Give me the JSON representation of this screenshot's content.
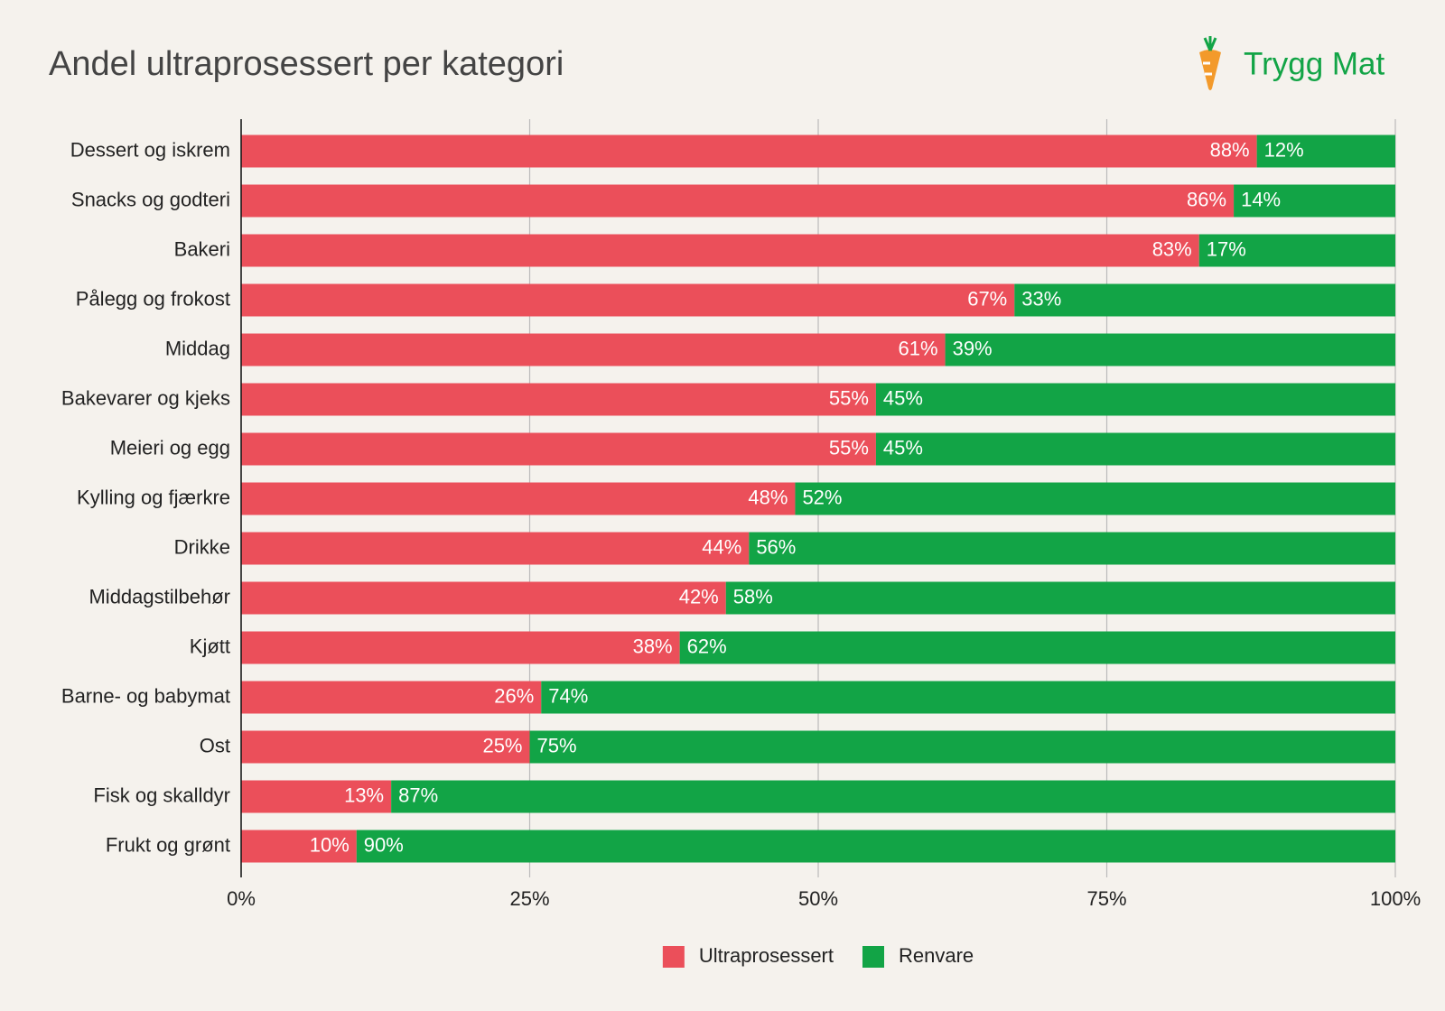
{
  "chart_data": {
    "type": "stacked-bar-horizontal",
    "title": "Andel ultraprosessert per kategori",
    "categories": [
      "Dessert og iskrem",
      "Snacks og godteri",
      "Bakeri",
      "Pålegg og frokost",
      "Middag",
      "Bakevarer og kjeks",
      "Meieri og egg",
      "Kylling og fjærkre",
      "Drikke",
      "Middagstilbehør",
      "Kjøtt",
      "Barne- og babymat",
      "Ost",
      "Fisk og skalldyr",
      "Frukt og grønt"
    ],
    "series": [
      {
        "name": "Ultraprosessert",
        "color": "#eb4f5a",
        "values": [
          88,
          86,
          83,
          67,
          61,
          55,
          55,
          48,
          44,
          42,
          38,
          26,
          25,
          13,
          10
        ],
        "value_labels": [
          "88%",
          "86%",
          "83%",
          "67%",
          "61%",
          "55%",
          "55%",
          "48%",
          "44%",
          "42%",
          "38%",
          "26%",
          "25%",
          "13%",
          "10%"
        ]
      },
      {
        "name": "Renvare",
        "color": "#12a446",
        "values": [
          12,
          14,
          17,
          33,
          39,
          45,
          45,
          52,
          56,
          58,
          62,
          74,
          75,
          87,
          90
        ],
        "value_labels": [
          "12%",
          "14%",
          "17%",
          "33%",
          "39%",
          "45%",
          "45%",
          "52%",
          "56%",
          "58%",
          "62%",
          "74%",
          "75%",
          "87%",
          "90%"
        ]
      }
    ],
    "xlim": [
      0,
      100
    ],
    "xticks": [
      {
        "value": 0,
        "label": "0%"
      },
      {
        "value": 25,
        "label": "25%"
      },
      {
        "value": 50,
        "label": "50%"
      },
      {
        "value": 75,
        "label": "75%"
      },
      {
        "value": 100,
        "label": "100%"
      }
    ],
    "grid": true,
    "legend": "bottom"
  },
  "brand": "Trygg Mat"
}
